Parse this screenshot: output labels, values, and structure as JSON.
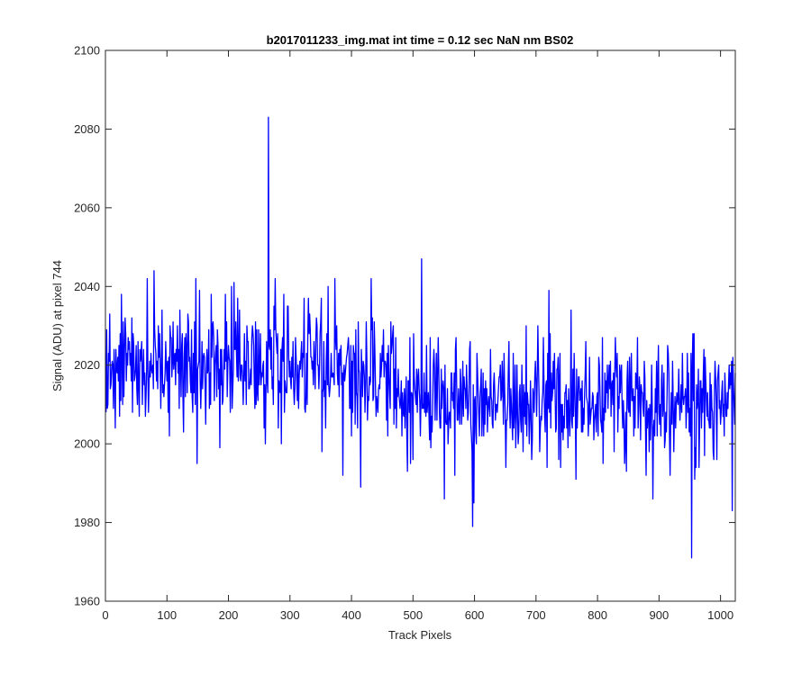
{
  "chart_data": {
    "type": "line",
    "title": "b2017011233_img.mat int time = 0.12 sec  NaN nm BS02",
    "xlabel": "Track Pixels",
    "ylabel": "Signal (ADU) at pixel 744",
    "xlim": [
      0,
      1024
    ],
    "ylim": [
      1960,
      2100
    ],
    "xticks": [
      0,
      100,
      200,
      300,
      400,
      500,
      600,
      700,
      800,
      900,
      1000
    ],
    "yticks": [
      1960,
      1980,
      2000,
      2020,
      2040,
      2060,
      2080,
      2100
    ],
    "grid": false,
    "legend": false,
    "series_color": "#0000ff",
    "noise": {
      "n": 1024,
      "seed": 20170112,
      "base_start": 2019,
      "base_end": 2011,
      "base_shift_x": 470,
      "sd": 8.2
    },
    "features": [
      {
        "x": 264,
        "y": 2083
      },
      {
        "x": 952,
        "y": 1971
      },
      {
        "x": 596,
        "y": 1979
      },
      {
        "x": 513,
        "y": 2047
      },
      {
        "x": 1018,
        "y": 1983
      },
      {
        "x": 385,
        "y": 1992
      },
      {
        "x": 78,
        "y": 2044
      },
      {
        "x": 289,
        "y": 2038
      },
      {
        "x": 720,
        "y": 2039
      },
      {
        "x": 598,
        "y": 1985
      }
    ]
  }
}
